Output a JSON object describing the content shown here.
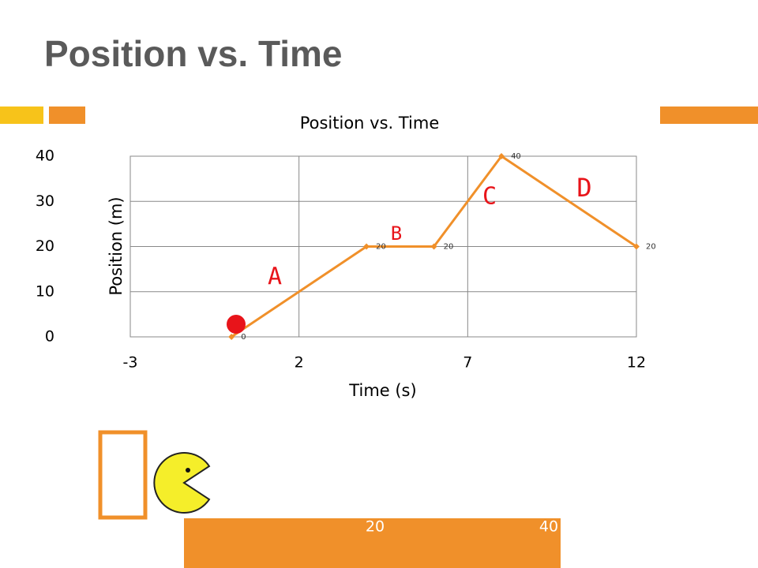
{
  "slide": {
    "title": "Position vs. Time",
    "bar_labels": [
      20,
      40
    ]
  },
  "chart_data": {
    "type": "line",
    "title": "Position vs. Time",
    "x_label": "Time (s)",
    "y_label": "Position (m)",
    "x": [
      0,
      4,
      6,
      8,
      12
    ],
    "series": [
      {
        "name": "Position",
        "color": "#f0902a",
        "values": [
          0,
          20,
          20,
          40,
          20
        ]
      }
    ],
    "xlim": [
      -3,
      12
    ],
    "xticks": [
      -3,
      2,
      7,
      12
    ],
    "ylim": [
      0,
      40
    ],
    "yticks": [
      0,
      10,
      20,
      30,
      40
    ],
    "grid": true,
    "annotations": [
      "A",
      "B",
      "C",
      "D"
    ]
  }
}
